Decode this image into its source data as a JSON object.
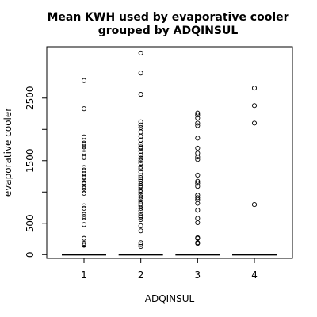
{
  "chart_data": {
    "type": "boxplot",
    "title_lines": [
      "Mean KWH used by evaporative cooler",
      "grouped by ADQINSUL"
    ],
    "xlabel": "ADQINSUL",
    "ylabel": "evaporative cooler",
    "categories": [
      "1",
      "2",
      "3",
      "4"
    ],
    "y_ticks": [
      0,
      500,
      1500,
      2500
    ],
    "ylim": [
      -60,
      3320
    ],
    "grid": false,
    "legend": "none",
    "medians": [
      0,
      0,
      0,
      0
    ],
    "outliers": [
      [
        2780,
        2330,
        1880,
        1820,
        1780,
        1760,
        1720,
        1680,
        1630,
        1570,
        1550,
        1390,
        1350,
        1290,
        1250,
        1230,
        1190,
        1150,
        1130,
        1090,
        1060,
        1020,
        980,
        780,
        740,
        640,
        610,
        590,
        480,
        260,
        180,
        160,
        150
      ],
      [
        3220,
        2900,
        2560,
        2120,
        2070,
        2030,
        1960,
        1890,
        1830,
        1760,
        1720,
        1700,
        1650,
        1590,
        1540,
        1500,
        1460,
        1400,
        1370,
        1320,
        1260,
        1230,
        1200,
        1170,
        1130,
        1100,
        1070,
        1030,
        1000,
        960,
        920,
        880,
        840,
        810,
        780,
        740,
        700,
        650,
        620,
        600,
        560,
        460,
        380,
        190,
        160,
        130
      ],
      [
        2260,
        2230,
        2180,
        2100,
        2060,
        1860,
        1700,
        1620,
        1560,
        1520,
        1270,
        1170,
        1140,
        1090,
        950,
        910,
        880,
        820,
        710,
        580,
        510,
        270,
        260,
        190,
        180
      ],
      [
        2660,
        2380,
        2100,
        800
      ]
    ],
    "colors": {
      "marks": "#000000",
      "background": "#ffffff"
    }
  }
}
